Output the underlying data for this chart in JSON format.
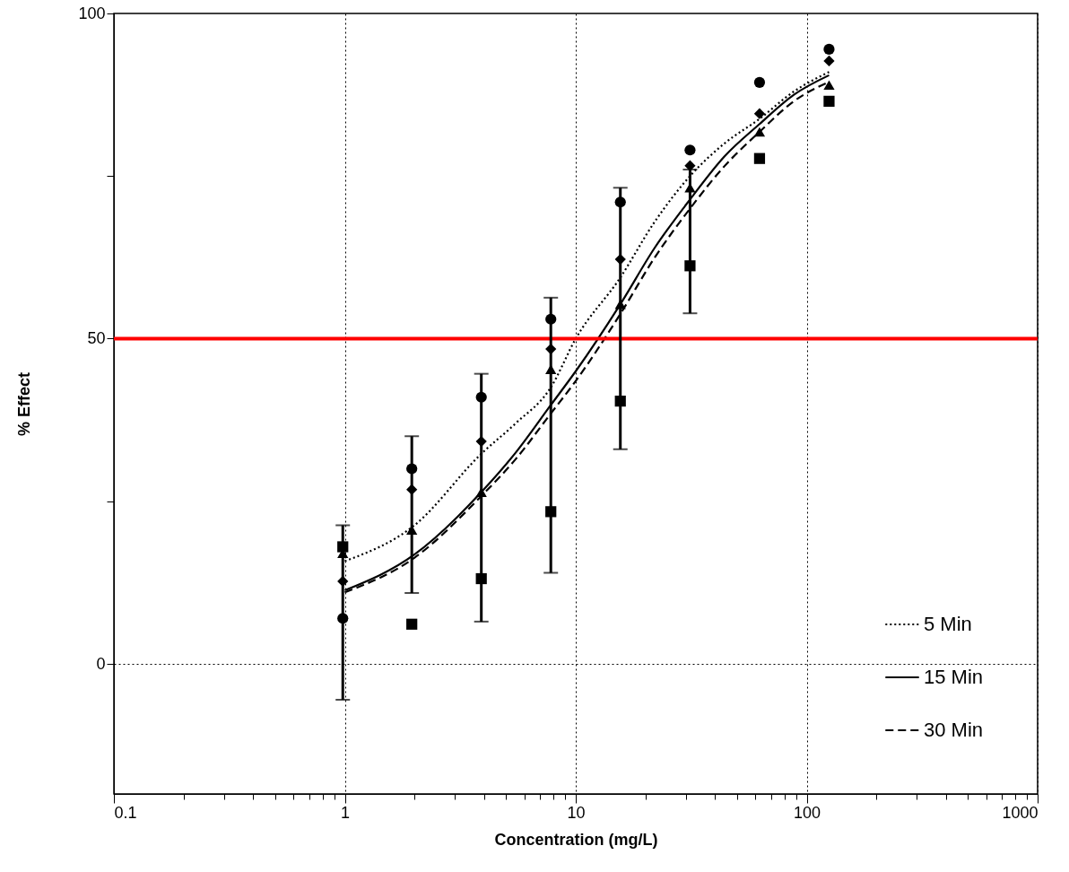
{
  "chart_data": {
    "type": "scatter",
    "xlabel": "Concentration (mg/L)",
    "ylabel": "% Effect",
    "log": "x",
    "xlim": [
      0.1,
      1000
    ],
    "xticks": [
      0.1,
      {
        "value": 0.2,
        "label": null
      },
      {
        "value": 0.3,
        "label": null
      },
      {
        "value": 0.4,
        "label": null
      },
      {
        "value": 0.5,
        "label": null
      },
      {
        "value": 0.6,
        "label": null
      },
      {
        "value": 0.7,
        "label": null
      },
      {
        "value": 0.8,
        "label": null
      },
      {
        "value": 0.9,
        "label": null
      },
      1,
      {
        "value": 2,
        "label": null
      },
      {
        "value": 3,
        "label": null
      },
      {
        "value": 4,
        "label": null
      },
      {
        "value": 5,
        "label": null
      },
      {
        "value": 6,
        "label": null
      },
      {
        "value": 7,
        "label": null
      },
      {
        "value": 8,
        "label": null
      },
      {
        "value": 9,
        "label": null
      },
      10,
      {
        "value": 20,
        "label": null
      },
      {
        "value": 30,
        "label": null
      },
      {
        "value": 40,
        "label": null
      },
      {
        "value": 50,
        "label": null
      },
      {
        "value": 60,
        "label": null
      },
      {
        "value": 70,
        "label": null
      },
      {
        "value": 80,
        "label": null
      },
      {
        "value": 90,
        "label": null
      },
      100,
      {
        "value": 200,
        "label": null
      },
      {
        "value": 300,
        "label": null
      },
      {
        "value": 400,
        "label": null
      },
      {
        "value": 500,
        "label": null
      },
      {
        "value": 600,
        "label": null
      },
      {
        "value": 700,
        "label": null
      },
      {
        "value": 800,
        "label": null
      },
      {
        "value": 900,
        "label": null
      },
      1000
    ],
    "ylim": [
      -20,
      100
    ],
    "yticks": [
      0,
      {
        "value": 25,
        "label": null
      },
      50,
      {
        "value": 75,
        "label": null
      },
      100
    ],
    "grid": true,
    "legend": "bottom right",
    "x": [
      0.98,
      1.95,
      3.9,
      7.8,
      15.6,
      31.25,
      62.5,
      125
    ],
    "series": [
      {
        "type": "line",
        "name": "5 Min",
        "color": "#000000",
        "line_style": "dotted",
        "x": [
          1,
          2,
          3.9,
          5.5,
          7.8,
          10,
          15.6,
          22,
          31.25,
          44,
          62.5,
          88,
          125
        ],
        "values": [
          15.8,
          21.3,
          32.3,
          37,
          42.5,
          50,
          59.4,
          68,
          75,
          80,
          83.8,
          88,
          91
        ]
      },
      {
        "type": "line",
        "name": "15 Min",
        "color": "#000000",
        "line_style": "solid",
        "x": [
          1,
          2,
          3.9,
          5.5,
          7.8,
          10,
          15.6,
          22,
          31.25,
          44,
          62.5,
          88,
          125
        ],
        "values": [
          11.3,
          16.8,
          26.4,
          32.5,
          39.8,
          45,
          55.3,
          64,
          71.4,
          78,
          83,
          87.5,
          90.5
        ]
      },
      {
        "type": "line",
        "name": "30 Min",
        "color": "#000000",
        "line_style": "dashed",
        "x": [
          1,
          2,
          3.9,
          5.5,
          7.8,
          10,
          15.6,
          22,
          31.25,
          44,
          62.5,
          88,
          125
        ],
        "values": [
          11,
          16.3,
          25.8,
          31.5,
          38.5,
          43.5,
          53.8,
          62.5,
          70,
          76.5,
          81.8,
          86.5,
          89.5
        ]
      },
      {
        "type": "scatter",
        "color": "#000000",
        "marker": "circle",
        "values": [
          7,
          30,
          41,
          53,
          71,
          79,
          89.4,
          94.5
        ]
      },
      {
        "type": "scatter",
        "color": "#000000",
        "marker": "diamond",
        "values": [
          12.7,
          26.8,
          34.2,
          48.4,
          62.2,
          76.6,
          84.6,
          92.7
        ]
      },
      {
        "type": "scatter",
        "color": "#000000",
        "marker": "triangle",
        "values": [
          17,
          20.6,
          26.4,
          45.3,
          55.3,
          73.2,
          81.8,
          89
        ],
        "errors": [
          [
            -5.5,
            21.3
          ],
          [
            10.9,
            35
          ],
          [
            6.5,
            44.6
          ],
          [
            14,
            56.3
          ],
          [
            33,
            73.2
          ],
          [
            53.9,
            76
          ],
          null,
          null
        ]
      },
      {
        "type": "scatter",
        "color": "#000000",
        "marker": "square",
        "values": [
          18,
          6.1,
          13.1,
          23.4,
          40.4,
          61.2,
          77.7,
          86.5
        ]
      }
    ],
    "ref_lines": [
      {
        "axis": "y",
        "value": 50,
        "color": "#ff0000"
      }
    ]
  }
}
